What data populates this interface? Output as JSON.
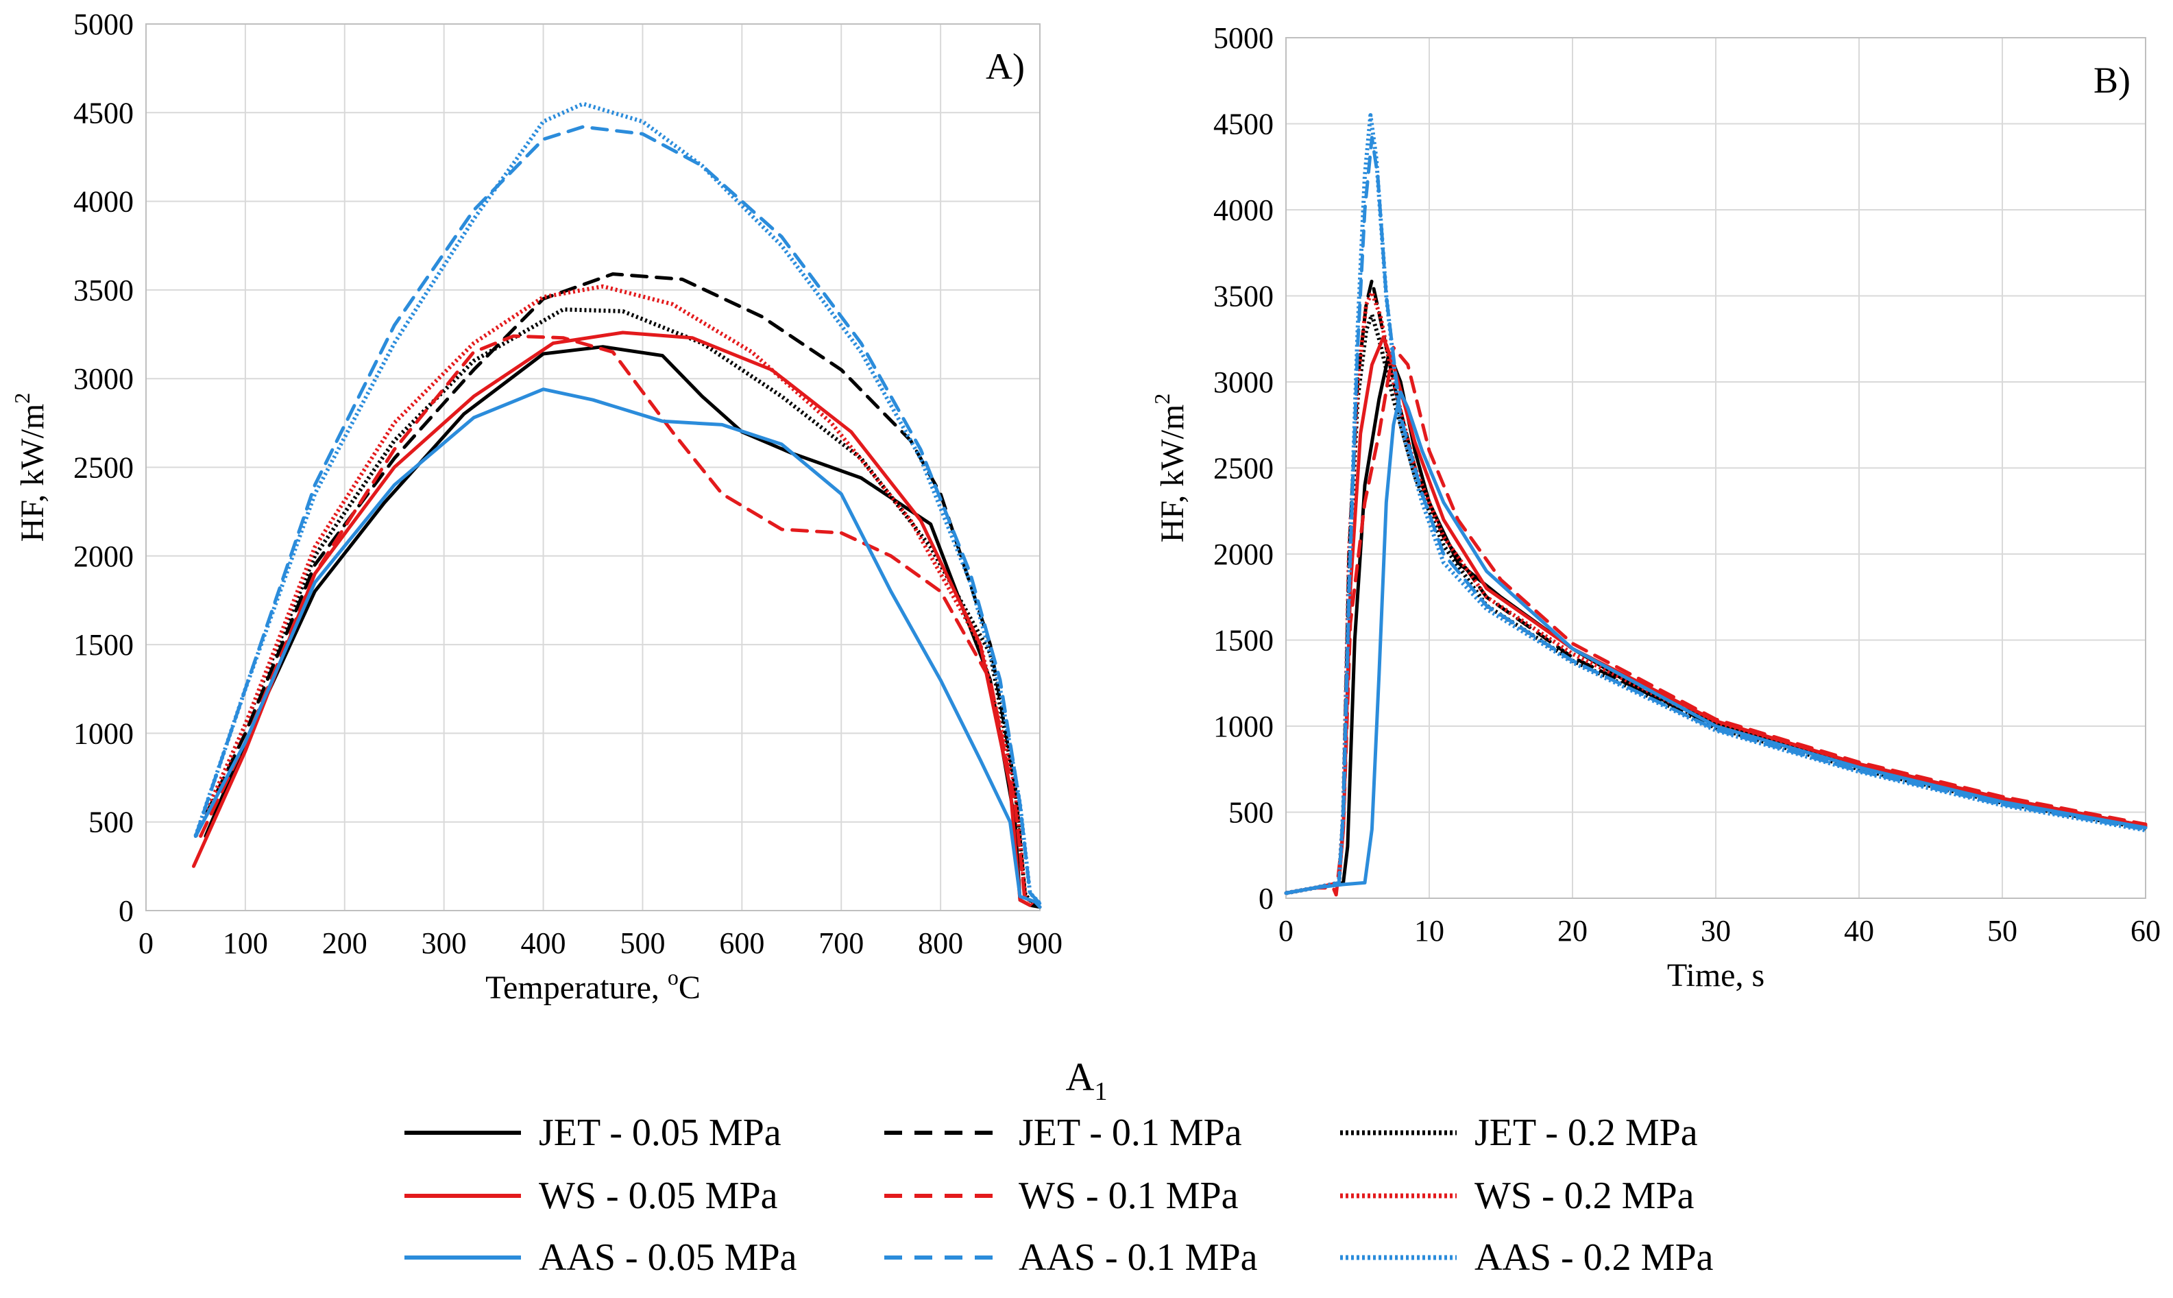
{
  "figure_label": "A",
  "figure_label_sub": "1",
  "colors": {
    "JET": "#000000",
    "WS": "#e31a1c",
    "AAS": "#2b8cdb"
  },
  "legend": [
    {
      "name": "JET - 0.05 MPa",
      "group": "JET",
      "style": "solid"
    },
    {
      "name": "JET - 0.1 MPa",
      "group": "JET",
      "style": "dashed"
    },
    {
      "name": "JET - 0.2 MPa",
      "group": "JET",
      "style": "dotted"
    },
    {
      "name": "WS - 0.05 MPa",
      "group": "WS",
      "style": "solid"
    },
    {
      "name": "WS - 0.1 MPa",
      "group": "WS",
      "style": "dashed"
    },
    {
      "name": "WS - 0.2 MPa",
      "group": "WS",
      "style": "dotted"
    },
    {
      "name": "AAS - 0.05 MPa",
      "group": "AAS",
      "style": "solid"
    },
    {
      "name": "AAS - 0.1 MPa",
      "group": "AAS",
      "style": "dashed"
    },
    {
      "name": "AAS - 0.2 MPa",
      "group": "AAS",
      "style": "dotted"
    }
  ],
  "chart_data": [
    {
      "type": "line",
      "panel": "A)",
      "xlabel": "Temperature, ",
      "xlabel_sup": "o",
      "xlabel_suffix": "C",
      "ylabel": "HF, kW/m",
      "ylabel_sup": "2",
      "xlim": [
        0,
        900
      ],
      "ylim": [
        0,
        5000
      ],
      "xticks": [
        0,
        100,
        200,
        300,
        400,
        500,
        600,
        700,
        800,
        900
      ],
      "yticks": [
        0,
        500,
        1000,
        1500,
        2000,
        2500,
        3000,
        3500,
        4000,
        4500,
        5000
      ],
      "grid": true,
      "series": [
        {
          "name": "JET - 0.05 MPa",
          "group": "JET",
          "style": "solid",
          "x": [
            60,
            100,
            170,
            240,
            320,
            400,
            460,
            520,
            560,
            600,
            650,
            720,
            790,
            850,
            875,
            880,
            890,
            900
          ],
          "y": [
            420,
            950,
            1800,
            2300,
            2800,
            3140,
            3180,
            3130,
            2900,
            2700,
            2580,
            2440,
            2180,
            1300,
            500,
            60,
            30,
            20
          ]
        },
        {
          "name": "JET - 0.1 MPa",
          "group": "JET",
          "style": "dashed",
          "x": [
            50,
            100,
            170,
            250,
            330,
            400,
            470,
            540,
            620,
            700,
            770,
            800,
            850,
            875,
            885,
            895
          ],
          "y": [
            420,
            1000,
            1950,
            2550,
            3050,
            3450,
            3590,
            3560,
            3350,
            3050,
            2650,
            2350,
            1500,
            700,
            100,
            30
          ]
        },
        {
          "name": "JET - 0.2 MPa",
          "group": "JET",
          "style": "dotted",
          "x": [
            50,
            100,
            170,
            250,
            330,
            420,
            480,
            560,
            640,
            720,
            790,
            850,
            875,
            885,
            895
          ],
          "y": [
            420,
            1050,
            2000,
            2650,
            3100,
            3390,
            3380,
            3200,
            2900,
            2550,
            2050,
            1450,
            700,
            90,
            30
          ]
        },
        {
          "name": "WS - 0.05 MPa",
          "group": "WS",
          "style": "solid",
          "x": [
            48,
            100,
            170,
            250,
            330,
            410,
            480,
            550,
            630,
            710,
            780,
            840,
            870,
            880,
            890
          ],
          "y": [
            250,
            900,
            1900,
            2500,
            2900,
            3200,
            3260,
            3230,
            3050,
            2700,
            2200,
            1500,
            700,
            60,
            30
          ]
        },
        {
          "name": "WS - 0.1 MPa",
          "group": "WS",
          "style": "dashed",
          "x": [
            55,
            100,
            170,
            250,
            330,
            370,
            420,
            470,
            530,
            580,
            640,
            700,
            750,
            800,
            850,
            875,
            885
          ],
          "y": [
            420,
            950,
            1900,
            2600,
            3150,
            3240,
            3230,
            3150,
            2700,
            2350,
            2150,
            2130,
            2000,
            1800,
            1300,
            600,
            50
          ]
        },
        {
          "name": "WS - 0.2 MPa",
          "group": "WS",
          "style": "dotted",
          "x": [
            50,
            100,
            170,
            250,
            330,
            400,
            460,
            530,
            610,
            690,
            770,
            840,
            875,
            885,
            895
          ],
          "y": [
            420,
            1050,
            2050,
            2750,
            3200,
            3460,
            3520,
            3420,
            3150,
            2750,
            2200,
            1500,
            700,
            80,
            30
          ]
        },
        {
          "name": "AAS - 0.05 MPa",
          "group": "AAS",
          "style": "solid",
          "x": [
            50,
            100,
            170,
            250,
            330,
            400,
            450,
            520,
            580,
            640,
            700,
            750,
            800,
            840,
            870,
            880,
            895,
            900
          ],
          "y": [
            420,
            950,
            1850,
            2400,
            2780,
            2940,
            2880,
            2760,
            2740,
            2630,
            2350,
            1800,
            1300,
            850,
            500,
            80,
            50,
            20
          ]
        },
        {
          "name": "AAS - 0.1 MPa",
          "group": "AAS",
          "style": "dashed",
          "x": [
            50,
            100,
            170,
            250,
            330,
            400,
            440,
            500,
            560,
            640,
            720,
            780,
            830,
            860,
            880,
            890,
            900
          ],
          "y": [
            420,
            1250,
            2400,
            3300,
            3950,
            4350,
            4420,
            4380,
            4200,
            3800,
            3200,
            2600,
            1900,
            1300,
            600,
            100,
            40
          ]
        },
        {
          "name": "AAS - 0.2 MPa",
          "group": "AAS",
          "style": "dotted",
          "x": [
            50,
            100,
            170,
            250,
            330,
            400,
            440,
            500,
            560,
            640,
            720,
            780,
            830,
            860,
            880,
            890,
            900
          ],
          "y": [
            420,
            1250,
            2350,
            3200,
            3900,
            4450,
            4550,
            4450,
            4200,
            3750,
            3150,
            2550,
            1850,
            1250,
            600,
            100,
            40
          ]
        }
      ]
    },
    {
      "type": "line",
      "panel": "B)",
      "xlabel": "Time, s",
      "ylabel": "HF, kW/m",
      "ylabel_sup": "2",
      "xlim": [
        0,
        60
      ],
      "ylim": [
        0,
        5000
      ],
      "xticks": [
        0,
        10,
        20,
        30,
        40,
        50,
        60
      ],
      "yticks": [
        0,
        500,
        1000,
        1500,
        2000,
        2500,
        3000,
        3500,
        4000,
        4500,
        5000
      ],
      "grid": true,
      "series": [
        {
          "name": "JET - 0.05 MPa",
          "group": "JET",
          "style": "solid",
          "x": [
            0,
            2,
            4,
            4.3,
            4.8,
            5.5,
            6.5,
            7.2,
            8,
            9,
            10,
            12,
            15,
            20,
            25,
            30,
            40,
            50,
            60
          ],
          "y": [
            30,
            60,
            90,
            300,
            1500,
            2400,
            2900,
            3170,
            3000,
            2600,
            2300,
            1950,
            1750,
            1450,
            1200,
            1020,
            780,
            580,
            420
          ]
        },
        {
          "name": "JET - 0.1 MPa",
          "group": "JET",
          "style": "dashed",
          "x": [
            0,
            2,
            3.7,
            4,
            4.4,
            5,
            5.6,
            6,
            6.5,
            7.5,
            9,
            11,
            14,
            20,
            30,
            40,
            50,
            60
          ],
          "y": [
            30,
            60,
            90,
            500,
            2000,
            3000,
            3450,
            3590,
            3400,
            3000,
            2500,
            2100,
            1750,
            1400,
            1000,
            760,
            560,
            410
          ]
        },
        {
          "name": "JET - 0.2 MPa",
          "group": "JET",
          "style": "dotted",
          "x": [
            0,
            2,
            3.7,
            4,
            4.4,
            5,
            5.6,
            6,
            6.5,
            7.5,
            9,
            11,
            14,
            20,
            30,
            40,
            50,
            60
          ],
          "y": [
            30,
            60,
            90,
            500,
            1900,
            2900,
            3300,
            3390,
            3250,
            2900,
            2450,
            2050,
            1700,
            1380,
            990,
            750,
            555,
            405
          ]
        },
        {
          "name": "WS - 0.05 MPa",
          "group": "WS",
          "style": "solid",
          "x": [
            0,
            2,
            3.7,
            4,
            4.5,
            5.2,
            6,
            6.8,
            7.5,
            9,
            11,
            14,
            20,
            30,
            40,
            50,
            60
          ],
          "y": [
            30,
            60,
            90,
            400,
            1800,
            2700,
            3100,
            3260,
            3100,
            2650,
            2200,
            1800,
            1450,
            1030,
            780,
            580,
            420
          ]
        },
        {
          "name": "WS - 0.1 MPa",
          "group": "WS",
          "style": "dashed",
          "x": [
            0,
            2,
            3.3,
            3.5,
            4,
            4.5,
            5.5,
            6.5,
            7.5,
            8.5,
            10,
            12,
            15,
            20,
            30,
            40,
            50,
            60
          ],
          "y": [
            30,
            60,
            60,
            20,
            400,
            1600,
            2300,
            2700,
            3200,
            3100,
            2600,
            2200,
            1850,
            1480,
            1040,
            790,
            590,
            430
          ]
        },
        {
          "name": "WS - 0.2 MPa",
          "group": "WS",
          "style": "dotted",
          "x": [
            0,
            2,
            3.7,
            4,
            4.4,
            5,
            5.6,
            6,
            6.6,
            7.5,
            9,
            11,
            14,
            20,
            30,
            40,
            50,
            60
          ],
          "y": [
            30,
            60,
            90,
            500,
            2000,
            3000,
            3450,
            3520,
            3380,
            3000,
            2500,
            2100,
            1750,
            1420,
            1010,
            770,
            570,
            415
          ]
        },
        {
          "name": "AAS - 0.05 MPa",
          "group": "AAS",
          "style": "solid",
          "x": [
            0,
            2,
            4,
            5.5,
            6,
            6.5,
            7,
            7.5,
            8,
            8.5,
            9.5,
            11,
            14,
            20,
            30,
            40,
            50,
            60
          ],
          "y": [
            30,
            60,
            80,
            90,
            400,
            1300,
            2300,
            2750,
            2940,
            2850,
            2600,
            2300,
            1900,
            1450,
            1000,
            760,
            560,
            410
          ]
        },
        {
          "name": "AAS - 0.1 MPa",
          "group": "AAS",
          "style": "dashed",
          "x": [
            0,
            2,
            3.7,
            4,
            4.4,
            5,
            5.5,
            6,
            6.4,
            7,
            8,
            9.5,
            11,
            14,
            20,
            30,
            40,
            50,
            60
          ],
          "y": [
            30,
            60,
            90,
            500,
            1800,
            3200,
            4000,
            4420,
            4200,
            3500,
            2800,
            2350,
            2000,
            1700,
            1380,
            980,
            740,
            545,
            400
          ]
        },
        {
          "name": "AAS - 0.2 MPa",
          "group": "AAS",
          "style": "dotted",
          "x": [
            0,
            2,
            3.7,
            4,
            4.4,
            5,
            5.5,
            5.9,
            6.3,
            7,
            8,
            9.5,
            11,
            14,
            20,
            30,
            40,
            50,
            60
          ],
          "y": [
            30,
            60,
            90,
            500,
            1800,
            3300,
            4200,
            4550,
            4300,
            3500,
            2750,
            2300,
            1950,
            1680,
            1370,
            975,
            735,
            540,
            395
          ]
        }
      ]
    }
  ]
}
